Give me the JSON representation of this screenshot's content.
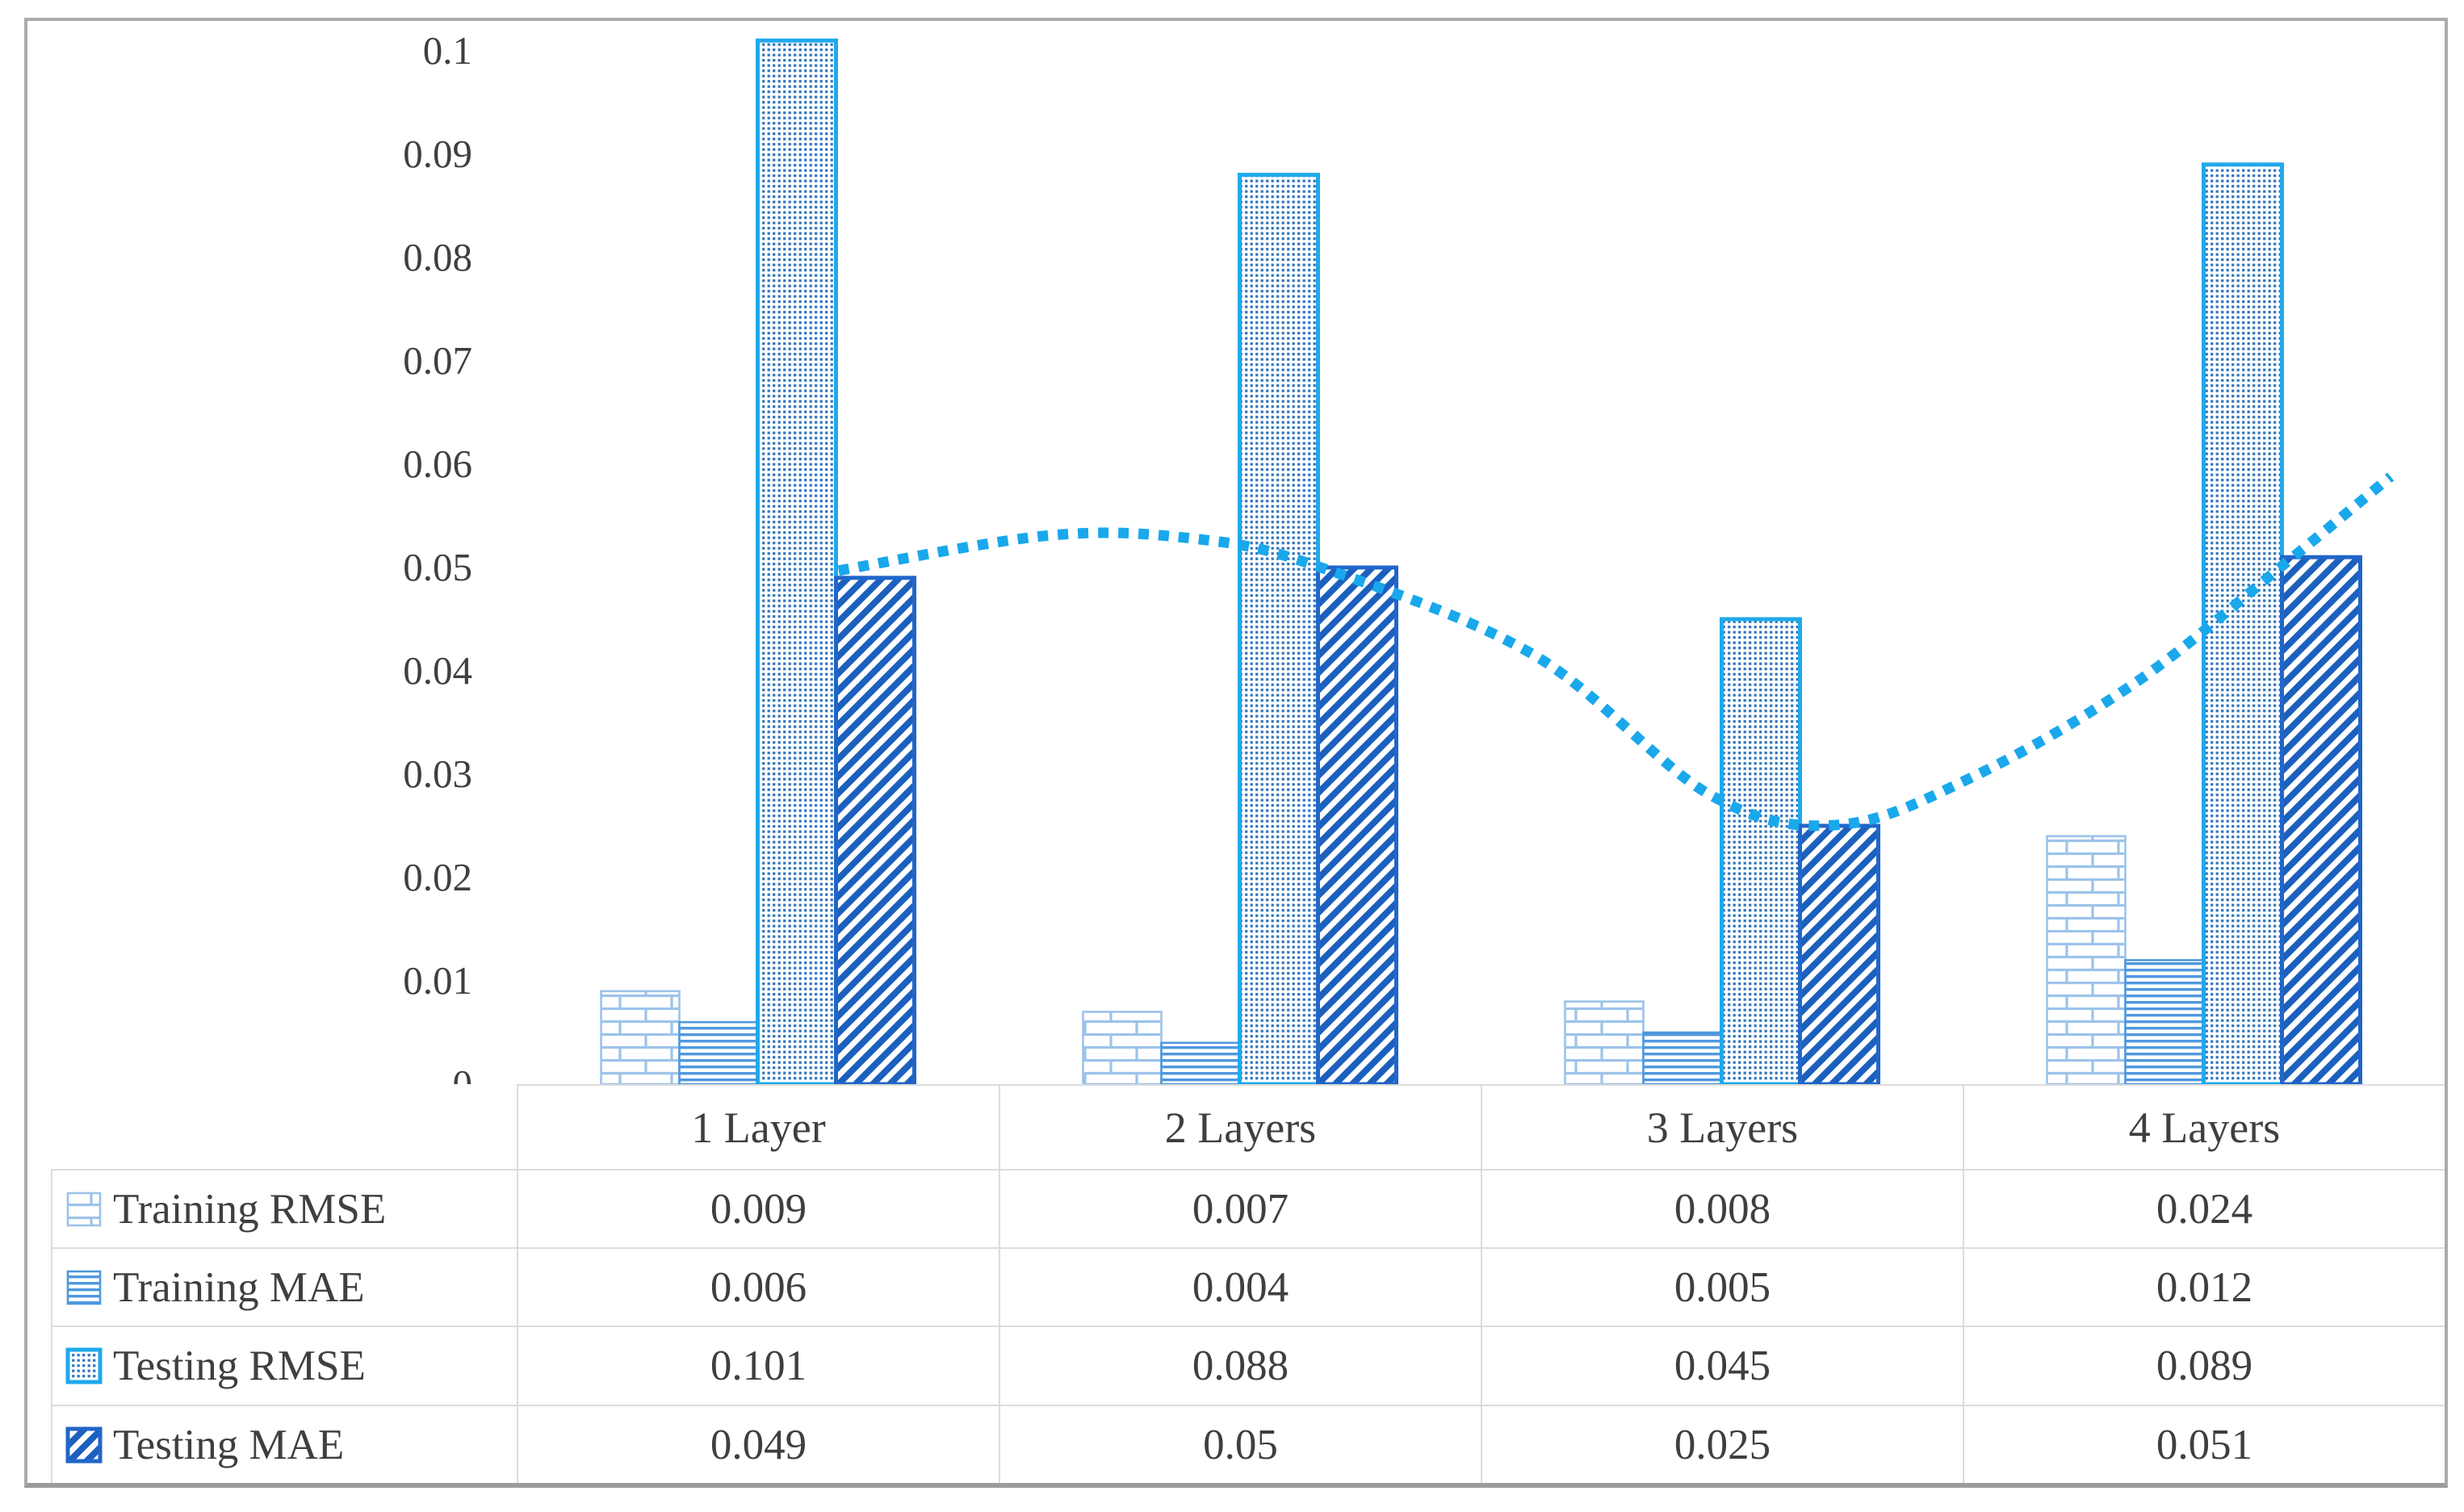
{
  "chart_data": {
    "type": "bar",
    "title": "",
    "categories": [
      "1 Layer",
      "2 Layers",
      "3 Layers",
      "4 Layers"
    ],
    "series": [
      {
        "name": "Training RMSE",
        "pattern": "brick",
        "values": [
          0.009,
          0.007,
          0.008,
          0.024
        ]
      },
      {
        "name": "Training MAE",
        "pattern": "hstripe",
        "values": [
          0.006,
          0.004,
          0.005,
          0.012
        ]
      },
      {
        "name": "Testing RMSE",
        "pattern": "dots",
        "values": [
          0.101,
          0.088,
          0.045,
          0.089
        ]
      },
      {
        "name": "Testing MAE",
        "pattern": "diag",
        "values": [
          0.049,
          0.05,
          0.025,
          0.051
        ]
      }
    ],
    "y_ticks": [
      "0.1",
      "0.09",
      "0.08",
      "0.07",
      "0.06",
      "0.05",
      "0.04",
      "0.03",
      "0.02",
      "0.01",
      "0"
    ],
    "ylim": [
      0,
      0.1
    ],
    "grid": false,
    "legend_position": "table-left-column",
    "table_shown": true,
    "trendline": {
      "for_series": "Testing MAE",
      "style": "dotted",
      "anchors": [
        {
          "f": 0.167,
          "v": 0.0497
        },
        {
          "f": 0.276,
          "v": 0.0531
        },
        {
          "f": 0.351,
          "v": 0.0528
        },
        {
          "f": 0.414,
          "v": 0.0502
        },
        {
          "f": 0.527,
          "v": 0.0416
        },
        {
          "f": 0.619,
          "v": 0.028
        },
        {
          "f": 0.686,
          "v": 0.0251
        },
        {
          "f": 0.757,
          "v": 0.0299
        },
        {
          "f": 0.84,
          "v": 0.0389
        },
        {
          "f": 0.916,
          "v": 0.0502
        },
        {
          "f": 0.972,
          "v": 0.0588
        }
      ]
    }
  },
  "colors": {
    "brick_line": "#9CC3EA",
    "hstripe_line": "#4F98DE",
    "dot_fill": "#2E74BE",
    "dot_border": "#1FA9EC",
    "diag_fill": "#1C60BE",
    "diag_border": "#2166C8",
    "trend": "#19A8EC",
    "text": "#3F3F3F",
    "grid_line": "#DCDCDC",
    "figure_border": "#ABABAB"
  }
}
